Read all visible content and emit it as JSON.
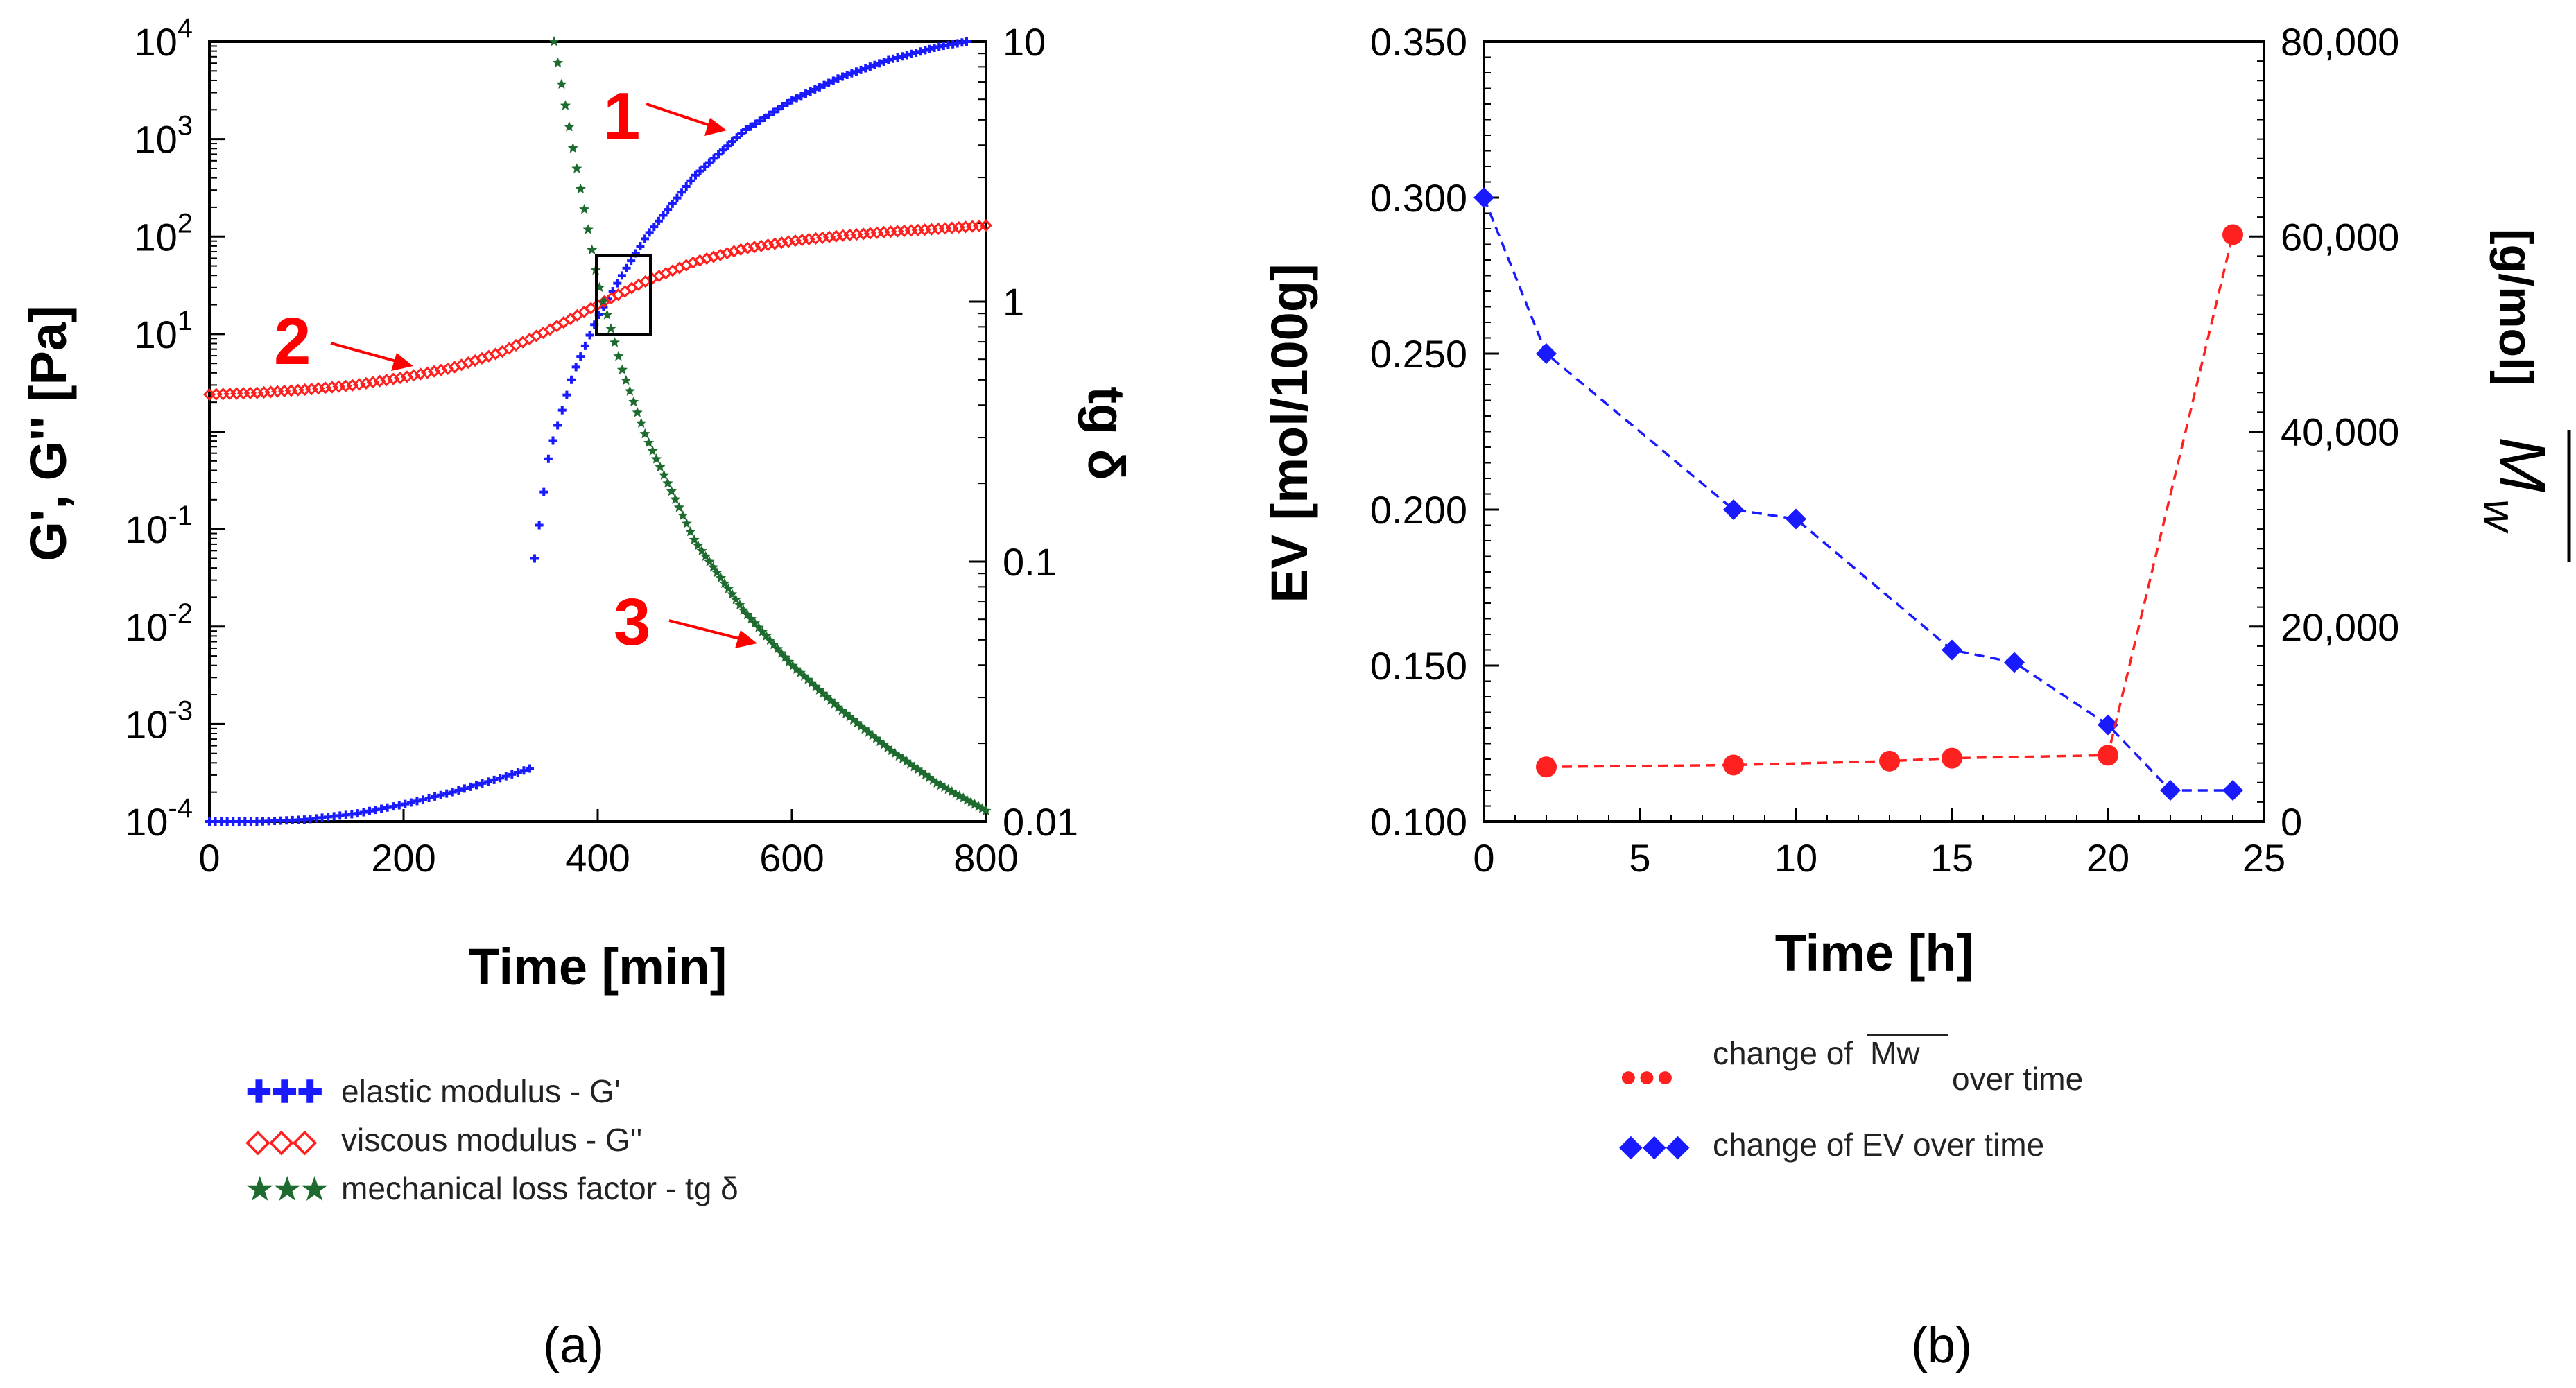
{
  "chart_data": [
    {
      "type": "scatter",
      "panel": "a",
      "caption": "(a)",
      "xlabel": "Time [min]",
      "ylabel_left": "G', G'' [Pa]",
      "ylabel_right": "tg δ",
      "xlim": [
        0,
        800
      ],
      "ylim_left_log10": [
        -4,
        4
      ],
      "ylim_right_log10": [
        -2,
        1
      ],
      "xticks": [
        "0",
        "200",
        "400",
        "600",
        "800"
      ],
      "yticks_left": [
        {
          "base": "10",
          "exp": "4"
        },
        {
          "base": "10",
          "exp": "3"
        },
        {
          "base": "10",
          "exp": "2"
        },
        {
          "base": "10",
          "exp": "1"
        },
        {
          "base": "10",
          "exp": "-1"
        },
        {
          "base": "10",
          "exp": "-2"
        },
        {
          "base": "10",
          "exp": "-3"
        },
        {
          "base": "10",
          "exp": "-4"
        }
      ],
      "yticks_right": [
        "10",
        "1",
        "0.1",
        "0.01"
      ],
      "series": [
        {
          "name": "elastic modulus - G'",
          "marker": "plus",
          "color": "#1a1aff",
          "axis": "left",
          "x": [
            0,
            50,
            100,
            150,
            200,
            250,
            300,
            330,
            335,
            350,
            375,
            400,
            425,
            450,
            500,
            550,
            600,
            650,
            700,
            750,
            780
          ],
          "y": [
            0.0001,
            0.0001,
            0.000105,
            0.00012,
            0.00015,
            0.0002,
            0.00028,
            0.00035,
            0.05,
            0.6,
            4,
            15,
            40,
            100,
            420,
            1200,
            2500,
            4300,
            6500,
            8800,
            10000
          ]
        },
        {
          "name": "viscous modulus - G''",
          "marker": "diamond-open",
          "color": "#ff2020",
          "axis": "left",
          "x": [
            0,
            50,
            100,
            150,
            200,
            250,
            300,
            350,
            400,
            450,
            500,
            550,
            600,
            650,
            700,
            750,
            800
          ],
          "y": [
            2.4,
            2.5,
            2.7,
            3.0,
            3.6,
            4.5,
            6.5,
            11,
            20,
            35,
            55,
            75,
            90,
            102,
            112,
            120,
            130
          ]
        },
        {
          "name": "mechanical loss factor - tg δ",
          "marker": "star",
          "color": "#1d6b2e",
          "axis": "right",
          "x": [
            355,
            375,
            400,
            425,
            450,
            500,
            550,
            600,
            650,
            700,
            750,
            800
          ],
          "y": [
            10,
            3.8,
            1.2,
            0.55,
            0.3,
            0.12,
            0.065,
            0.04,
            0.027,
            0.019,
            0.014,
            0.011
          ]
        }
      ],
      "curve_labels": [
        {
          "text": "1",
          "series": "elastic modulus - G'"
        },
        {
          "text": "2",
          "series": "viscous modulus - G''"
        },
        {
          "text": "3",
          "series": "mechanical loss factor - tg δ"
        }
      ],
      "annotation": "square marking the G'/G'' crossover (gel point) near 420 min",
      "legend": [
        {
          "symbol": "✚✚✚",
          "label": "elastic modulus - G'",
          "color": "#1a1aff"
        },
        {
          "symbol": "◇◇◇",
          "label": "viscous modulus - G''",
          "color": "#ff2020"
        },
        {
          "symbol": "★★★",
          "label": "mechanical loss factor - tg δ",
          "color": "#1d6b2e"
        }
      ]
    },
    {
      "type": "line",
      "panel": "b",
      "caption": "(b)",
      "xlabel": "Time [h]",
      "ylabel_left": "EV [mol/100g]",
      "ylabel_right_symbol": "M",
      "ylabel_right_subscript": "w",
      "ylabel_right_unit": "[g/mol]",
      "xlim": [
        0,
        25
      ],
      "ylim_left": [
        0.1,
        0.35
      ],
      "ylim_right": [
        0,
        80000
      ],
      "xticks": [
        "0",
        "5",
        "10",
        "15",
        "20",
        "25"
      ],
      "yticks_left": [
        "0.100",
        "0.150",
        "0.200",
        "0.250",
        "0.300",
        "0.350"
      ],
      "yticks_right": [
        "0",
        "20,000",
        "40,000",
        "60,000",
        "80,000"
      ],
      "series": [
        {
          "name": "change of EV over time",
          "marker": "diamond",
          "color": "#1a1aff",
          "axis": "left",
          "x": [
            0,
            2,
            8,
            10,
            15,
            17,
            20,
            22,
            24
          ],
          "y": [
            0.3,
            0.25,
            0.2,
            0.197,
            0.155,
            0.151,
            0.131,
            0.11,
            0.11
          ]
        },
        {
          "name": "change of Mw over time",
          "marker": "circle",
          "color": "#ff2020",
          "axis": "right",
          "x": [
            2,
            8,
            13,
            15,
            20,
            24
          ],
          "y": [
            5600,
            5800,
            6200,
            6500,
            6800,
            60200
          ]
        }
      ],
      "legend": [
        {
          "symbol": "●●●",
          "label_pre": "change of",
          "label_sym": "Mw",
          "label_post": "over time",
          "color": "#ff2020"
        },
        {
          "symbol": "◆◆◆",
          "label": "change of EV over time",
          "color": "#1a1aff"
        }
      ]
    }
  ]
}
